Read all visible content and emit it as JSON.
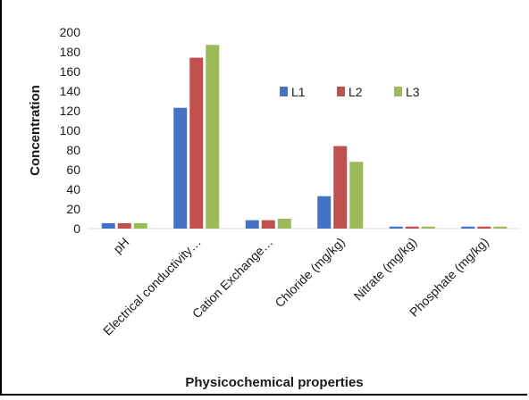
{
  "chart_data": {
    "type": "bar",
    "categories": [
      "pH",
      "Electrical conductivity…",
      "Cation Exchange…",
      "Chloride (mg/kg)",
      "Nitrate (mg/kg)",
      "Phosphate (mg/kg)"
    ],
    "series": [
      {
        "name": "L1",
        "color": "#4472C4",
        "values": [
          5.5,
          123,
          8.5,
          33,
          2,
          2
        ]
      },
      {
        "name": "L2",
        "color": "#C0504D",
        "values": [
          5.5,
          174,
          8.5,
          84,
          2,
          2
        ]
      },
      {
        "name": "L3",
        "color": "#9BBB59",
        "values": [
          5.5,
          187,
          10,
          68,
          2,
          2
        ]
      }
    ],
    "title": "",
    "xlabel": "Physicochemical properties",
    "ylabel": "Concentration",
    "ylim": [
      0,
      200
    ],
    "yticks": [
      0,
      20,
      40,
      60,
      80,
      100,
      120,
      140,
      160,
      180,
      200
    ],
    "grid": false,
    "legend_position": "top-center"
  }
}
